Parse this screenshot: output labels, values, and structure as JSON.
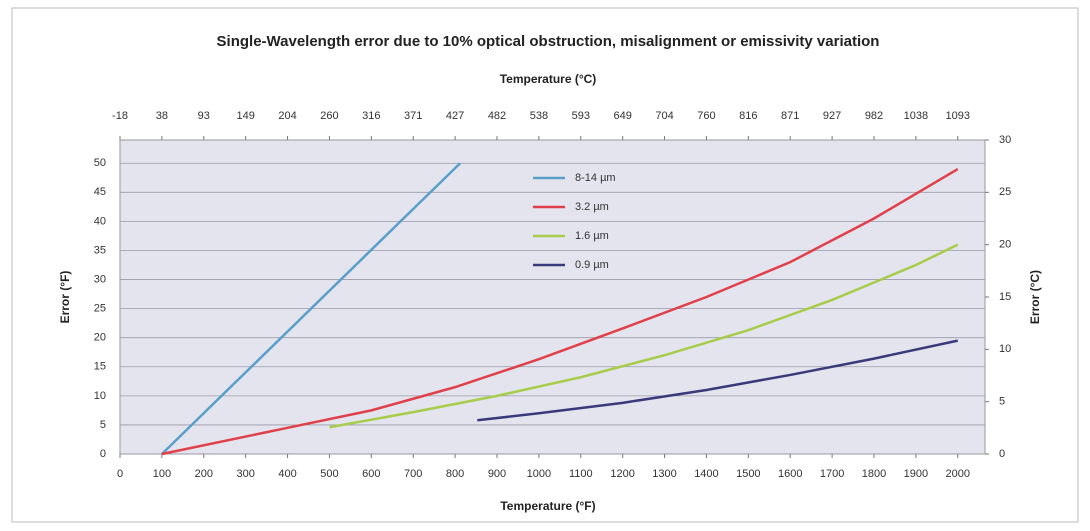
{
  "chart_data": {
    "type": "line",
    "title": "Single-Wavelength error due to 10% optical obstruction, misalignment or emissivity variation",
    "xlabel": "Temperature (°F)",
    "top_xlabel": "Temperature (°C)",
    "ylabel": "Error (°F)",
    "y2label": "Error (°C)",
    "xlim": [
      0,
      2065
    ],
    "xticks": [
      0,
      100,
      200,
      300,
      400,
      500,
      600,
      700,
      800,
      900,
      1000,
      1100,
      1200,
      1300,
      1400,
      1500,
      1600,
      1700,
      1800,
      1900,
      2000
    ],
    "top_xticks": [
      {
        "value": 0,
        "label": "-18"
      },
      {
        "value": 100,
        "label": "38"
      },
      {
        "value": 200,
        "label": "93"
      },
      {
        "value": 300,
        "label": "149"
      },
      {
        "value": 400,
        "label": "204"
      },
      {
        "value": 500,
        "label": "260"
      },
      {
        "value": 600,
        "label": "316"
      },
      {
        "value": 700,
        "label": "371"
      },
      {
        "value": 800,
        "label": "427"
      },
      {
        "value": 900,
        "label": "482"
      },
      {
        "value": 1000,
        "label": "538"
      },
      {
        "value": 1100,
        "label": "593"
      },
      {
        "value": 1200,
        "label": "649"
      },
      {
        "value": 1300,
        "label": "704"
      },
      {
        "value": 1400,
        "label": "760"
      },
      {
        "value": 1500,
        "label": "816"
      },
      {
        "value": 1600,
        "label": "871"
      },
      {
        "value": 1700,
        "label": "927"
      },
      {
        "value": 1800,
        "label": "982"
      },
      {
        "value": 1900,
        "label": "1038"
      },
      {
        "value": 2000,
        "label": "1093"
      }
    ],
    "ylim": [
      0,
      54
    ],
    "yticks": [
      0,
      5,
      10,
      15,
      20,
      25,
      30,
      35,
      40,
      45,
      50
    ],
    "y2lim": [
      0,
      30
    ],
    "y2ticks": [
      0,
      5,
      10,
      15,
      20,
      25,
      30
    ],
    "grid": true,
    "legend": "top-center",
    "series": [
      {
        "name": "8-14 µm",
        "color": "#5a9fc8",
        "x": [
          100,
          812
        ],
        "values": [
          0,
          50
        ]
      },
      {
        "name": "3.2 µm",
        "color": "#e0404a",
        "x": [
          100,
          400,
          600,
          800,
          1000,
          1200,
          1400,
          1600,
          1800,
          2000
        ],
        "values": [
          0,
          4.5,
          7.5,
          11.5,
          16.3,
          21.6,
          27,
          33,
          40.5,
          49
        ]
      },
      {
        "name": "1.6 µm",
        "color": "#a8cc4a",
        "x": [
          500,
          700,
          900,
          1100,
          1300,
          1500,
          1700,
          1900,
          2000
        ],
        "values": [
          4.6,
          7.2,
          10,
          13.2,
          17,
          21.3,
          26.5,
          32.5,
          36
        ]
      },
      {
        "name": "0.9 µm",
        "color": "#3a3a7a",
        "x": [
          853,
          1000,
          1200,
          1400,
          1600,
          1800,
          2000
        ],
        "values": [
          5.8,
          7,
          8.8,
          11,
          13.6,
          16.4,
          19.5
        ]
      }
    ]
  }
}
